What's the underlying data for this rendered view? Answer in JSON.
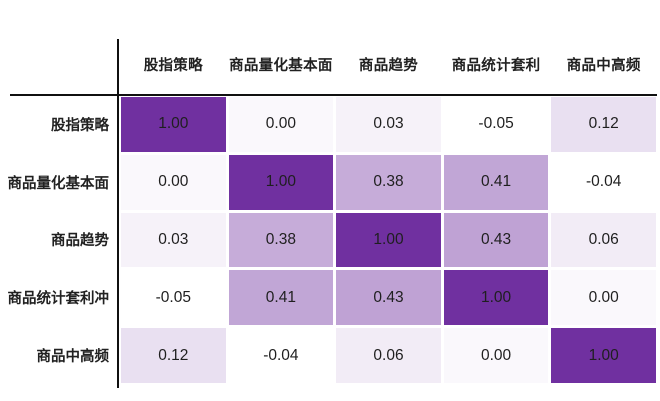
{
  "chart_data": {
    "type": "heatmap",
    "title": "",
    "columns": [
      "股指策略",
      "商品量化基本面",
      "商品趋势",
      "商品统计套利",
      "商品中高频"
    ],
    "rows": [
      "股指策略",
      "商品量化基本面",
      "商品趋势",
      "商品统计套利冲",
      "商品中高频"
    ],
    "matrix": [
      [
        1.0,
        0.0,
        0.03,
        -0.05,
        0.12
      ],
      [
        0.0,
        1.0,
        0.38,
        0.41,
        -0.04
      ],
      [
        0.03,
        0.38,
        1.0,
        0.43,
        0.06
      ],
      [
        -0.05,
        0.41,
        0.43,
        1.0,
        0.0
      ],
      [
        0.12,
        -0.04,
        0.06,
        0.0,
        1.0
      ]
    ],
    "value_format": "two_decimals",
    "legend_position": "none",
    "grid": "white-gaps",
    "value_range": [
      -0.05,
      1.0
    ],
    "colorscale": {
      "min_color": "#FFFFFF",
      "max_color": "#7030A0",
      "zero_tint": 0.035,
      "note": "negative values render white; positive values interpolate white to purple"
    },
    "colors": {
      "diagonal_cell": "#7030A0",
      "medium_cell_example": "#BFA2D4",
      "light_cell_example": "#E9E0F1",
      "near_zero_cell": "#FAF8FC",
      "text": "#1F1F1F",
      "header_text": "#212121",
      "axis_line": "#101010",
      "background": "#FFFFFF"
    }
  }
}
